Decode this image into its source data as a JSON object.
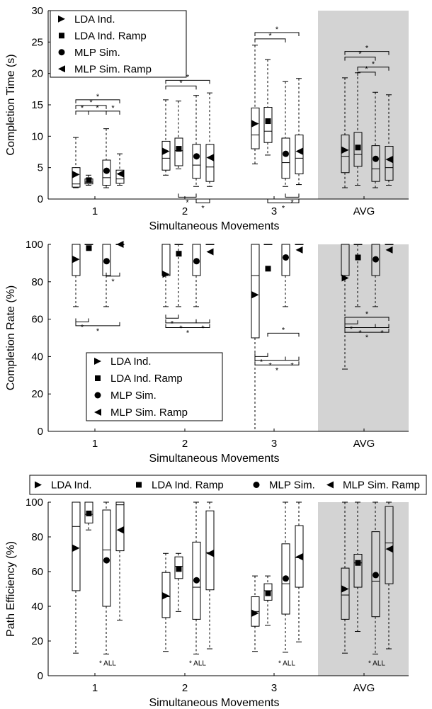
{
  "series_names": [
    "LDA Ind.",
    "LDA Ind. Ramp",
    "MLP Sim.",
    "MLP Sim. Ramp"
  ],
  "marker_kinds": [
    "triangle-right",
    "square",
    "circle",
    "triangle-left"
  ],
  "colors": {
    "highlight_band": "#d3d3d3",
    "ink": "#000000"
  },
  "chart_data": [
    {
      "type": "box",
      "title": "",
      "xlabel": "Simultaneous Movements",
      "ylabel": "Completion Time (s)",
      "categories": [
        "1",
        "2",
        "3",
        "AVG"
      ],
      "ylim": [
        0,
        30
      ],
      "yticks": [
        0,
        5,
        10,
        15,
        20,
        25,
        30
      ],
      "highlight_category": "AVG",
      "legend": {
        "placement": "top-left",
        "entries": [
          "LDA Ind.",
          "LDA Ind. Ramp",
          "MLP Sim.",
          "MLP Sim. Ramp"
        ]
      },
      "series": [
        {
          "name": "LDA Ind.",
          "boxes": [
            {
              "whislo": 1.8,
              "q1": 1.9,
              "med": 2.4,
              "q3": 5.0,
              "whishi": 9.8,
              "mean": 3.9
            },
            {
              "whislo": 3.8,
              "q1": 4.6,
              "med": 6.5,
              "q3": 9.2,
              "whishi": 15.8,
              "mean": 7.6
            },
            {
              "whislo": 5.6,
              "q1": 8.0,
              "med": 10.2,
              "q3": 14.5,
              "whishi": 24.5,
              "mean": 12.0
            },
            {
              "whislo": 1.8,
              "q1": 4.2,
              "med": 6.8,
              "q3": 10.2,
              "whishi": 19.3,
              "mean": 7.8
            }
          ]
        },
        {
          "name": "LDA Ind. Ramp",
          "boxes": [
            {
              "whislo": 2.2,
              "q1": 2.4,
              "med": 2.7,
              "q3": 3.2,
              "whishi": 3.8,
              "mean": 3.0
            },
            {
              "whislo": 4.8,
              "q1": 5.3,
              "med": 7.7,
              "q3": 9.7,
              "whishi": 15.6,
              "mean": 8.0
            },
            {
              "whislo": 7.0,
              "q1": 9.0,
              "med": 10.8,
              "q3": 14.6,
              "whishi": 22.2,
              "mean": 12.4
            },
            {
              "whislo": 2.2,
              "q1": 5.2,
              "med": 7.1,
              "q3": 10.6,
              "whishi": 20.1,
              "mean": 8.2
            }
          ]
        },
        {
          "name": "MLP Sim.",
          "boxes": [
            {
              "whislo": 1.8,
              "q1": 2.2,
              "med": 3.4,
              "q3": 6.2,
              "whishi": 11.2,
              "mean": 4.5
            },
            {
              "whislo": 2.0,
              "q1": 3.3,
              "med": 5.4,
              "q3": 8.7,
              "whishi": 16.5,
              "mean": 6.8
            },
            {
              "whislo": 2.0,
              "q1": 3.3,
              "med": 5.8,
              "q3": 9.7,
              "whishi": 18.7,
              "mean": 7.2
            },
            {
              "whislo": 1.8,
              "q1": 2.8,
              "med": 4.8,
              "q3": 8.5,
              "whishi": 17.0,
              "mean": 6.4
            }
          ]
        },
        {
          "name": "MLP Sim. Ramp",
          "boxes": [
            {
              "whislo": 2.2,
              "q1": 2.5,
              "med": 3.2,
              "q3": 4.6,
              "whishi": 7.2,
              "mean": 4.0
            },
            {
              "whislo": 2.0,
              "q1": 2.8,
              "med": 5.1,
              "q3": 8.7,
              "whishi": 16.9,
              "mean": 6.6
            },
            {
              "whislo": 2.3,
              "q1": 4.0,
              "med": 6.5,
              "q3": 10.2,
              "whishi": 19.2,
              "mean": 7.6
            },
            {
              "whislo": 2.2,
              "q1": 3.0,
              "med": 5.0,
              "q3": 8.4,
              "whishi": 16.6,
              "mean": 6.3
            }
          ]
        }
      ],
      "significance": [
        {
          "cat": 0,
          "from": 0,
          "to": 2,
          "y": 14.9,
          "hang": "down"
        },
        {
          "cat": 0,
          "from": 0,
          "to": 3,
          "y": 15.8,
          "hang": "down"
        },
        {
          "cat": 0,
          "from": 0,
          "to": 1,
          "y": 14.0,
          "hang": "down"
        },
        {
          "cat": 0,
          "from": 1,
          "to": 2,
          "y": 14.0,
          "hang": "down"
        },
        {
          "cat": 0,
          "from": 2,
          "to": 3,
          "y": 14.0,
          "hang": "down"
        },
        {
          "cat": 1,
          "from": 0,
          "to": 2,
          "y": 18.0,
          "hang": "down"
        },
        {
          "cat": 1,
          "from": 0,
          "to": 3,
          "y": 18.9,
          "hang": "down"
        },
        {
          "cat": 1,
          "from": 2,
          "to": 3,
          "y": -0.6,
          "hang": "up"
        },
        {
          "cat": 1,
          "from": 1,
          "to": 2,
          "y": 0.3,
          "hang": "up"
        },
        {
          "cat": 2,
          "from": 0,
          "to": 3,
          "y": 26.5,
          "hang": "down"
        },
        {
          "cat": 2,
          "from": 0,
          "to": 2,
          "y": 25.5,
          "hang": "down"
        },
        {
          "cat": 2,
          "from": 2,
          "to": 3,
          "y": 0.3,
          "hang": "up"
        },
        {
          "cat": 2,
          "from": 1,
          "to": 3,
          "y": -0.6,
          "hang": "up"
        },
        {
          "cat": 3,
          "from": 0,
          "to": 3,
          "y": 23.5,
          "hang": "down"
        },
        {
          "cat": 3,
          "from": 0,
          "to": 2,
          "y": 22.6,
          "hang": "down"
        },
        {
          "cat": 3,
          "from": 1,
          "to": 3,
          "y": 21.0,
          "hang": "down"
        },
        {
          "cat": 3,
          "from": 1,
          "to": 2,
          "y": 20.2,
          "hang": "down"
        }
      ],
      "sig_label": "*"
    },
    {
      "type": "box",
      "title": "",
      "xlabel": "Simultaneous Movements",
      "ylabel": "Completion Rate (%)",
      "categories": [
        "1",
        "2",
        "3",
        "AVG"
      ],
      "ylim": [
        0,
        100
      ],
      "yticks": [
        0,
        20,
        40,
        60,
        80,
        100
      ],
      "highlight_category": "AVG",
      "legend": {
        "placement": "bottom-left",
        "entries": [
          "LDA Ind.",
          "LDA Ind. Ramp",
          "MLP Sim.",
          "MLP Sim. Ramp"
        ]
      },
      "series": [
        {
          "name": "LDA Ind.",
          "boxes": [
            {
              "whislo": 66.7,
              "q1": 83.3,
              "med": 100,
              "q3": 100,
              "whishi": 100,
              "mean": 92
            },
            {
              "whislo": 66.7,
              "q1": 83.3,
              "med": 100,
              "q3": 100,
              "whishi": 100,
              "mean": 84
            },
            {
              "whislo": 0,
              "q1": 50,
              "med": 83.3,
              "q3": 100,
              "whishi": 100,
              "mean": 73
            },
            {
              "whislo": 33.3,
              "q1": 83.3,
              "med": 100,
              "q3": 100,
              "whishi": 100,
              "mean": 82
            }
          ]
        },
        {
          "name": "LDA Ind. Ramp",
          "boxes": [
            {
              "whislo": 100,
              "q1": 100,
              "med": 100,
              "q3": 100,
              "whishi": 100,
              "mean": 98
            },
            {
              "whislo": 66.7,
              "q1": 100,
              "med": 100,
              "q3": 100,
              "whishi": 100,
              "mean": 95
            },
            {
              "whislo": 100,
              "q1": 100,
              "med": 100,
              "q3": 100,
              "whishi": 100,
              "mean": 87
            },
            {
              "whislo": 66.7,
              "q1": 100,
              "med": 100,
              "q3": 100,
              "whishi": 100,
              "mean": 93
            }
          ]
        },
        {
          "name": "MLP Sim.",
          "boxes": [
            {
              "whislo": 66.7,
              "q1": 83.3,
              "med": 100,
              "q3": 100,
              "whishi": 100,
              "mean": 91
            },
            {
              "whislo": 66.7,
              "q1": 83.3,
              "med": 100,
              "q3": 100,
              "whishi": 100,
              "mean": 91
            },
            {
              "whislo": 66.7,
              "q1": 83.3,
              "med": 100,
              "q3": 100,
              "whishi": 100,
              "mean": 93
            },
            {
              "whislo": 66.7,
              "q1": 83.3,
              "med": 100,
              "q3": 100,
              "whishi": 100,
              "mean": 92
            }
          ]
        },
        {
          "name": "MLP Sim. Ramp",
          "boxes": [
            {
              "whislo": 100,
              "q1": 100,
              "med": 100,
              "q3": 100,
              "whishi": 100,
              "mean": 100
            },
            {
              "whislo": 100,
              "q1": 100,
              "med": 100,
              "q3": 100,
              "whishi": 100,
              "mean": 96
            },
            {
              "whislo": 100,
              "q1": 100,
              "med": 100,
              "q3": 100,
              "whishi": 100,
              "mean": 97
            },
            {
              "whislo": 100,
              "q1": 100,
              "med": 100,
              "q3": 100,
              "whishi": 100,
              "mean": 97
            }
          ]
        }
      ],
      "significance": [
        {
          "cat": 0,
          "from": 2,
          "to": 3,
          "y": 83,
          "hang": "up"
        },
        {
          "cat": 0,
          "from": 0,
          "to": 1,
          "y": 58.5,
          "hang": "up"
        },
        {
          "cat": 0,
          "from": 0,
          "to": 3,
          "y": 56.5,
          "hang": "up"
        },
        {
          "cat": 1,
          "from": 0,
          "to": 1,
          "y": 60.5,
          "hang": "up"
        },
        {
          "cat": 1,
          "from": 0,
          "to": 2,
          "y": 58,
          "hang": "up"
        },
        {
          "cat": 1,
          "from": 2,
          "to": 3,
          "y": 58,
          "hang": "up"
        },
        {
          "cat": 1,
          "from": 0,
          "to": 3,
          "y": 55.5,
          "hang": "up"
        },
        {
          "cat": 2,
          "from": 1,
          "to": 3,
          "y": 52.5,
          "hang": "down"
        },
        {
          "cat": 2,
          "from": 0,
          "to": 1,
          "y": 40,
          "hang": "up"
        },
        {
          "cat": 2,
          "from": 0,
          "to": 2,
          "y": 38,
          "hang": "up"
        },
        {
          "cat": 2,
          "from": 2,
          "to": 3,
          "y": 38,
          "hang": "up"
        },
        {
          "cat": 2,
          "from": 0,
          "to": 3,
          "y": 35.5,
          "hang": "up"
        },
        {
          "cat": 3,
          "from": 0,
          "to": 3,
          "y": 61,
          "hang": "down"
        },
        {
          "cat": 3,
          "from": 0,
          "to": 1,
          "y": 57.5,
          "hang": "up"
        },
        {
          "cat": 3,
          "from": 0,
          "to": 2,
          "y": 55.5,
          "hang": "up"
        },
        {
          "cat": 3,
          "from": 2,
          "to": 3,
          "y": 55.5,
          "hang": "up"
        },
        {
          "cat": 3,
          "from": 0,
          "to": 3,
          "y": 53,
          "hang": "up"
        }
      ],
      "sig_label": "*"
    },
    {
      "type": "box",
      "title": "",
      "xlabel": "Simultaneous Movements",
      "ylabel": "Path Efficiency (%)",
      "categories": [
        "1",
        "2",
        "3",
        "AVG"
      ],
      "ylim": [
        0,
        100
      ],
      "yticks": [
        0,
        20,
        40,
        60,
        80,
        100
      ],
      "highlight_category": "AVG",
      "legend": {
        "placement": "top (outside, horizontal)",
        "entries": [
          "LDA Ind.",
          "LDA Ind. Ramp",
          "MLP Sim.",
          "MLP Sim. Ramp"
        ]
      },
      "series": [
        {
          "name": "LDA Ind.",
          "boxes": [
            {
              "whislo": 13,
              "q1": 49,
              "med": 86,
              "q3": 100,
              "whishi": 100,
              "mean": 73.5
            },
            {
              "whislo": 14,
              "q1": 33.5,
              "med": 45.5,
              "q3": 59.5,
              "whishi": 70.5,
              "mean": 46
            },
            {
              "whislo": 14,
              "q1": 28.5,
              "med": 37,
              "q3": 45.5,
              "whishi": 57.5,
              "mean": 36
            },
            {
              "whislo": 13,
              "q1": 32.5,
              "med": 46.5,
              "q3": 62,
              "whishi": 100,
              "mean": 50
            }
          ]
        },
        {
          "name": "LDA Ind. Ramp",
          "boxes": [
            {
              "whislo": 84,
              "q1": 88,
              "med": 93,
              "q3": 100,
              "whishi": 100,
              "mean": 93.5
            },
            {
              "whislo": 37,
              "q1": 56,
              "med": 63,
              "q3": 68.5,
              "whishi": 70.5,
              "mean": 61.5
            },
            {
              "whislo": 29,
              "q1": 43.5,
              "med": 49,
              "q3": 53,
              "whishi": 57.5,
              "mean": 47.5
            },
            {
              "whislo": 25.5,
              "q1": 51,
              "med": 65,
              "q3": 70,
              "whishi": 100,
              "mean": 65
            }
          ]
        },
        {
          "name": "MLP Sim.",
          "boxes": [
            {
              "whislo": 12.5,
              "q1": 40,
              "med": 72.5,
              "q3": 95.5,
              "whishi": 100,
              "mean": 66.5
            },
            {
              "whislo": 12.5,
              "q1": 32.5,
              "med": 51,
              "q3": 77,
              "whishi": 100,
              "mean": 55
            },
            {
              "whislo": 13.5,
              "q1": 35.5,
              "med": 53,
              "q3": 76,
              "whishi": 100,
              "mean": 56
            },
            {
              "whislo": 12.5,
              "q1": 34,
              "med": 54.5,
              "q3": 83,
              "whishi": 100,
              "mean": 58
            }
          ]
        },
        {
          "name": "MLP Sim. Ramp",
          "boxes": [
            {
              "whislo": 32,
              "q1": 72,
              "med": 98.5,
              "q3": 100,
              "whishi": 100,
              "mean": 84
            },
            {
              "whislo": 15.5,
              "q1": 49.5,
              "med": 71,
              "q3": 95,
              "whishi": 100,
              "mean": 70.5
            },
            {
              "whislo": 19.5,
              "q1": 51,
              "med": 68,
              "q3": 86.5,
              "whishi": 100,
              "mean": 68.5
            },
            {
              "whislo": 15.5,
              "q1": 53,
              "med": 76.5,
              "q3": 97.5,
              "whishi": 100,
              "mean": 73
            }
          ]
        }
      ],
      "annotations": [
        "* ALL",
        "* ALL",
        "* ALL",
        "* ALL"
      ],
      "annotation_y": 6
    }
  ]
}
